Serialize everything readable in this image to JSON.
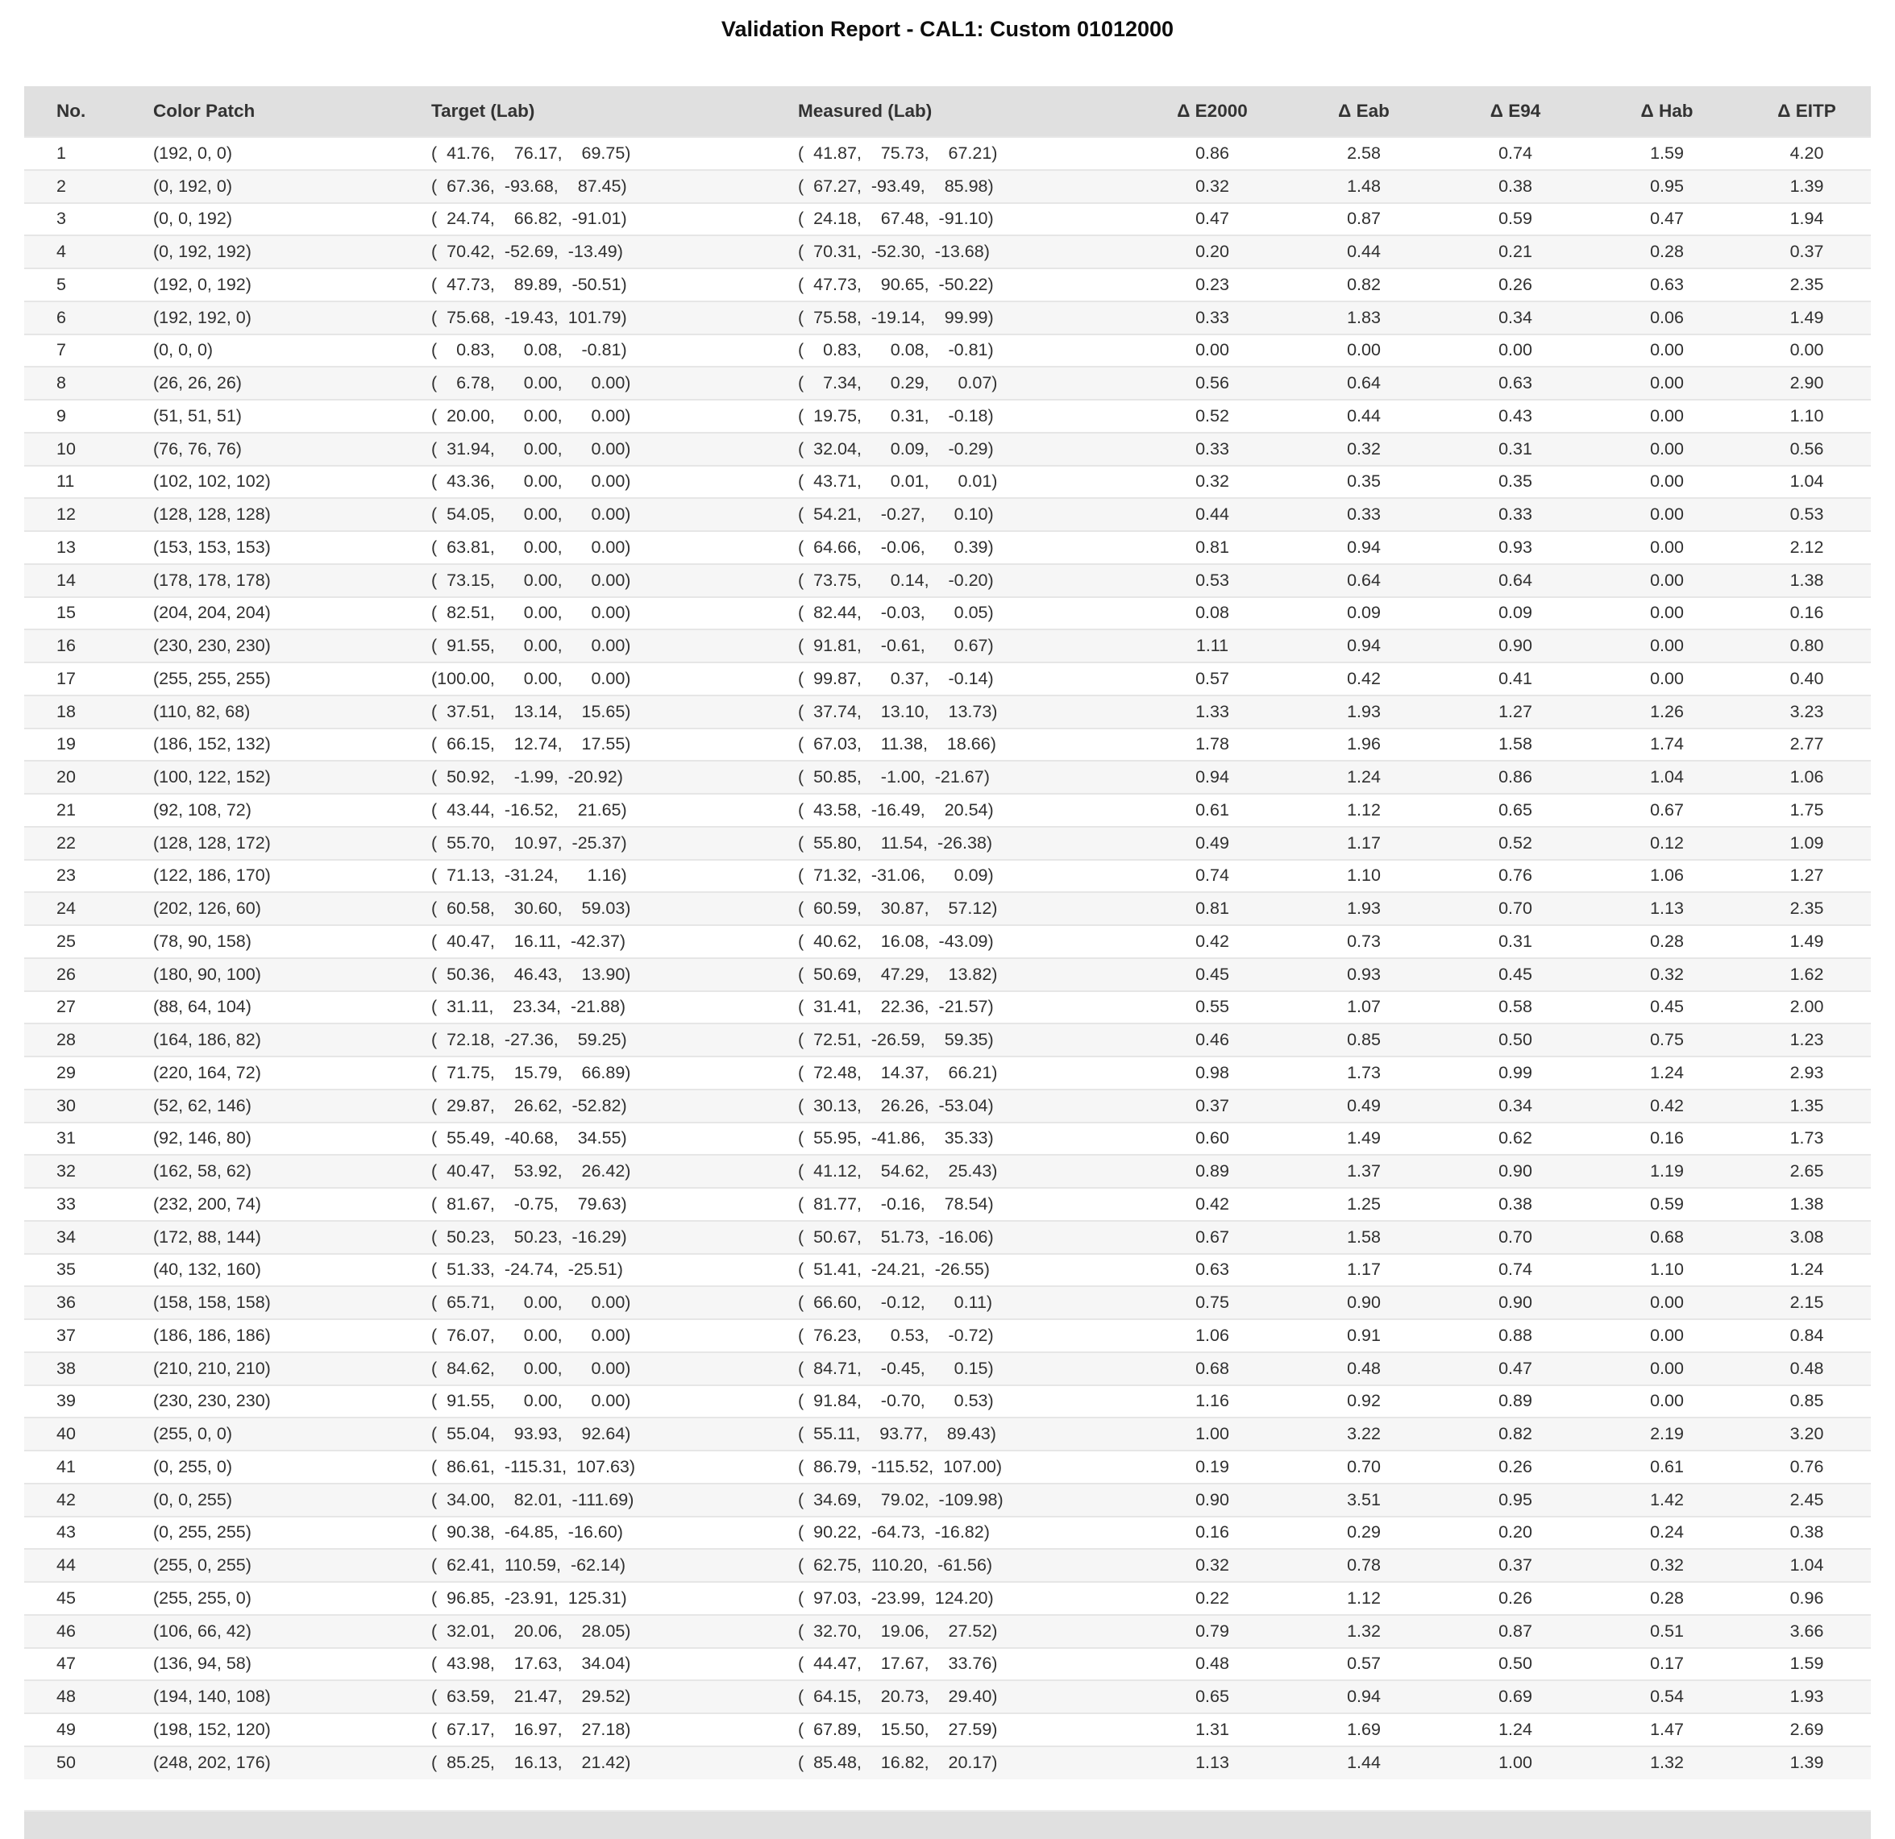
{
  "report": {
    "title": "Validation Report - CAL1: Custom 01012000"
  },
  "colors": {
    "header_bg": "#e0e0e0",
    "footer_bg": "#e0e0e0",
    "row_stripe": "#f6f6f6",
    "row_border": "#e6e6e6",
    "text": "#303030"
  },
  "table": {
    "columns": [
      "No.",
      "Color Patch",
      "Target (Lab)",
      "Measured (Lab)",
      "Δ E2000",
      "Δ Eab",
      "Δ E94",
      "Δ Hab",
      "Δ EITP"
    ],
    "rows": [
      [
        "1",
        "(192, 0, 0)",
        "( 41.76,  76.17,  69.75)",
        "( 41.87,  75.73,  67.21)",
        "0.86",
        "2.58",
        "0.74",
        "1.59",
        "4.20"
      ],
      [
        "2",
        "(0, 192, 0)",
        "( 67.36, -93.68,  87.45)",
        "( 67.27, -93.49,  85.98)",
        "0.32",
        "1.48",
        "0.38",
        "0.95",
        "1.39"
      ],
      [
        "3",
        "(0, 0, 192)",
        "( 24.74,  66.82, -91.01)",
        "( 24.18,  67.48, -91.10)",
        "0.47",
        "0.87",
        "0.59",
        "0.47",
        "1.94"
      ],
      [
        "4",
        "(0, 192, 192)",
        "( 70.42, -52.69, -13.49)",
        "( 70.31, -52.30, -13.68)",
        "0.20",
        "0.44",
        "0.21",
        "0.28",
        "0.37"
      ],
      [
        "5",
        "(192, 0, 192)",
        "( 47.73,  89.89, -50.51)",
        "( 47.73,  90.65, -50.22)",
        "0.23",
        "0.82",
        "0.26",
        "0.63",
        "2.35"
      ],
      [
        "6",
        "(192, 192, 0)",
        "( 75.68, -19.43, 101.79)",
        "( 75.58, -19.14,  99.99)",
        "0.33",
        "1.83",
        "0.34",
        "0.06",
        "1.49"
      ],
      [
        "7",
        "(0, 0, 0)",
        "(  0.83,   0.08,  -0.81)",
        "(  0.83,   0.08,  -0.81)",
        "0.00",
        "0.00",
        "0.00",
        "0.00",
        "0.00"
      ],
      [
        "8",
        "(26, 26, 26)",
        "(  6.78,   0.00,   0.00)",
        "(  7.34,   0.29,   0.07)",
        "0.56",
        "0.64",
        "0.63",
        "0.00",
        "2.90"
      ],
      [
        "9",
        "(51, 51, 51)",
        "( 20.00,   0.00,   0.00)",
        "( 19.75,   0.31,  -0.18)",
        "0.52",
        "0.44",
        "0.43",
        "0.00",
        "1.10"
      ],
      [
        "10",
        "(76, 76, 76)",
        "( 31.94,   0.00,   0.00)",
        "( 32.04,   0.09,  -0.29)",
        "0.33",
        "0.32",
        "0.31",
        "0.00",
        "0.56"
      ],
      [
        "11",
        "(102, 102, 102)",
        "( 43.36,   0.00,   0.00)",
        "( 43.71,   0.01,   0.01)",
        "0.32",
        "0.35",
        "0.35",
        "0.00",
        "1.04"
      ],
      [
        "12",
        "(128, 128, 128)",
        "( 54.05,   0.00,   0.00)",
        "( 54.21,  -0.27,   0.10)",
        "0.44",
        "0.33",
        "0.33",
        "0.00",
        "0.53"
      ],
      [
        "13",
        "(153, 153, 153)",
        "( 63.81,   0.00,   0.00)",
        "( 64.66,  -0.06,   0.39)",
        "0.81",
        "0.94",
        "0.93",
        "0.00",
        "2.12"
      ],
      [
        "14",
        "(178, 178, 178)",
        "( 73.15,   0.00,   0.00)",
        "( 73.75,   0.14,  -0.20)",
        "0.53",
        "0.64",
        "0.64",
        "0.00",
        "1.38"
      ],
      [
        "15",
        "(204, 204, 204)",
        "( 82.51,   0.00,   0.00)",
        "( 82.44,  -0.03,   0.05)",
        "0.08",
        "0.09",
        "0.09",
        "0.00",
        "0.16"
      ],
      [
        "16",
        "(230, 230, 230)",
        "( 91.55,   0.00,   0.00)",
        "( 91.81,  -0.61,   0.67)",
        "1.11",
        "0.94",
        "0.90",
        "0.00",
        "0.80"
      ],
      [
        "17",
        "(255, 255, 255)",
        "(100.00,   0.00,   0.00)",
        "( 99.87,   0.37,  -0.14)",
        "0.57",
        "0.42",
        "0.41",
        "0.00",
        "0.40"
      ],
      [
        "18",
        "(110, 82, 68)",
        "( 37.51,  13.14,  15.65)",
        "( 37.74,  13.10,  13.73)",
        "1.33",
        "1.93",
        "1.27",
        "1.26",
        "3.23"
      ],
      [
        "19",
        "(186, 152, 132)",
        "( 66.15,  12.74,  17.55)",
        "( 67.03,  11.38,  18.66)",
        "1.78",
        "1.96",
        "1.58",
        "1.74",
        "2.77"
      ],
      [
        "20",
        "(100, 122, 152)",
        "( 50.92,  -1.99, -20.92)",
        "( 50.85,  -1.00, -21.67)",
        "0.94",
        "1.24",
        "0.86",
        "1.04",
        "1.06"
      ],
      [
        "21",
        "(92, 108, 72)",
        "( 43.44, -16.52,  21.65)",
        "( 43.58, -16.49,  20.54)",
        "0.61",
        "1.12",
        "0.65",
        "0.67",
        "1.75"
      ],
      [
        "22",
        "(128, 128, 172)",
        "( 55.70,  10.97, -25.37)",
        "( 55.80,  11.54, -26.38)",
        "0.49",
        "1.17",
        "0.52",
        "0.12",
        "1.09"
      ],
      [
        "23",
        "(122, 186, 170)",
        "( 71.13, -31.24,   1.16)",
        "( 71.32, -31.06,   0.09)",
        "0.74",
        "1.10",
        "0.76",
        "1.06",
        "1.27"
      ],
      [
        "24",
        "(202, 126, 60)",
        "( 60.58,  30.60,  59.03)",
        "( 60.59,  30.87,  57.12)",
        "0.81",
        "1.93",
        "0.70",
        "1.13",
        "2.35"
      ],
      [
        "25",
        "(78, 90, 158)",
        "( 40.47,  16.11, -42.37)",
        "( 40.62,  16.08, -43.09)",
        "0.42",
        "0.73",
        "0.31",
        "0.28",
        "1.49"
      ],
      [
        "26",
        "(180, 90, 100)",
        "( 50.36,  46.43,  13.90)",
        "( 50.69,  47.29,  13.82)",
        "0.45",
        "0.93",
        "0.45",
        "0.32",
        "1.62"
      ],
      [
        "27",
        "(88, 64, 104)",
        "( 31.11,  23.34, -21.88)",
        "( 31.41,  22.36, -21.57)",
        "0.55",
        "1.07",
        "0.58",
        "0.45",
        "2.00"
      ],
      [
        "28",
        "(164, 186, 82)",
        "( 72.18, -27.36,  59.25)",
        "( 72.51, -26.59,  59.35)",
        "0.46",
        "0.85",
        "0.50",
        "0.75",
        "1.23"
      ],
      [
        "29",
        "(220, 164, 72)",
        "( 71.75,  15.79,  66.89)",
        "( 72.48,  14.37,  66.21)",
        "0.98",
        "1.73",
        "0.99",
        "1.24",
        "2.93"
      ],
      [
        "30",
        "(52, 62, 146)",
        "( 29.87,  26.62, -52.82)",
        "( 30.13,  26.26, -53.04)",
        "0.37",
        "0.49",
        "0.34",
        "0.42",
        "1.35"
      ],
      [
        "31",
        "(92, 146, 80)",
        "( 55.49, -40.68,  34.55)",
        "( 55.95, -41.86,  35.33)",
        "0.60",
        "1.49",
        "0.62",
        "0.16",
        "1.73"
      ],
      [
        "32",
        "(162, 58, 62)",
        "( 40.47,  53.92,  26.42)",
        "( 41.12,  54.62,  25.43)",
        "0.89",
        "1.37",
        "0.90",
        "1.19",
        "2.65"
      ],
      [
        "33",
        "(232, 200, 74)",
        "( 81.67,  -0.75,  79.63)",
        "( 81.77,  -0.16,  78.54)",
        "0.42",
        "1.25",
        "0.38",
        "0.59",
        "1.38"
      ],
      [
        "34",
        "(172, 88, 144)",
        "( 50.23,  50.23, -16.29)",
        "( 50.67,  51.73, -16.06)",
        "0.67",
        "1.58",
        "0.70",
        "0.68",
        "3.08"
      ],
      [
        "35",
        "(40, 132, 160)",
        "( 51.33, -24.74, -25.51)",
        "( 51.41, -24.21, -26.55)",
        "0.63",
        "1.17",
        "0.74",
        "1.10",
        "1.24"
      ],
      [
        "36",
        "(158, 158, 158)",
        "( 65.71,   0.00,   0.00)",
        "( 66.60,  -0.12,   0.11)",
        "0.75",
        "0.90",
        "0.90",
        "0.00",
        "2.15"
      ],
      [
        "37",
        "(186, 186, 186)",
        "( 76.07,   0.00,   0.00)",
        "( 76.23,   0.53,  -0.72)",
        "1.06",
        "0.91",
        "0.88",
        "0.00",
        "0.84"
      ],
      [
        "38",
        "(210, 210, 210)",
        "( 84.62,   0.00,   0.00)",
        "( 84.71,  -0.45,   0.15)",
        "0.68",
        "0.48",
        "0.47",
        "0.00",
        "0.48"
      ],
      [
        "39",
        "(230, 230, 230)",
        "( 91.55,   0.00,   0.00)",
        "( 91.84,  -0.70,   0.53)",
        "1.16",
        "0.92",
        "0.89",
        "0.00",
        "0.85"
      ],
      [
        "40",
        "(255, 0, 0)",
        "( 55.04,  93.93,  92.64)",
        "( 55.11,  93.77,  89.43)",
        "1.00",
        "3.22",
        "0.82",
        "2.19",
        "3.20"
      ],
      [
        "41",
        "(0, 255, 0)",
        "( 86.61, -115.31, 107.63)",
        "( 86.79, -115.52, 107.00)",
        "0.19",
        "0.70",
        "0.26",
        "0.61",
        "0.76"
      ],
      [
        "42",
        "(0, 0, 255)",
        "( 34.00,  82.01, -111.69)",
        "( 34.69,  79.02, -109.98)",
        "0.90",
        "3.51",
        "0.95",
        "1.42",
        "2.45"
      ],
      [
        "43",
        "(0, 255, 255)",
        "( 90.38, -64.85, -16.60)",
        "( 90.22, -64.73, -16.82)",
        "0.16",
        "0.29",
        "0.20",
        "0.24",
        "0.38"
      ],
      [
        "44",
        "(255, 0, 255)",
        "( 62.41, 110.59, -62.14)",
        "( 62.75, 110.20, -61.56)",
        "0.32",
        "0.78",
        "0.37",
        "0.32",
        "1.04"
      ],
      [
        "45",
        "(255, 255, 0)",
        "( 96.85, -23.91, 125.31)",
        "( 97.03, -23.99, 124.20)",
        "0.22",
        "1.12",
        "0.26",
        "0.28",
        "0.96"
      ],
      [
        "46",
        "(106, 66, 42)",
        "( 32.01,  20.06,  28.05)",
        "( 32.70,  19.06,  27.52)",
        "0.79",
        "1.32",
        "0.87",
        "0.51",
        "3.66"
      ],
      [
        "47",
        "(136, 94, 58)",
        "( 43.98,  17.63,  34.04)",
        "( 44.47,  17.67,  33.76)",
        "0.48",
        "0.57",
        "0.50",
        "0.17",
        "1.59"
      ],
      [
        "48",
        "(194, 140, 108)",
        "( 63.59,  21.47,  29.52)",
        "( 64.15,  20.73,  29.40)",
        "0.65",
        "0.94",
        "0.69",
        "0.54",
        "1.93"
      ],
      [
        "49",
        "(198, 152, 120)",
        "( 67.17,  16.97,  27.18)",
        "( 67.89,  15.50,  27.59)",
        "1.31",
        "1.69",
        "1.24",
        "1.47",
        "2.69"
      ],
      [
        "50",
        "(248, 202, 176)",
        "( 85.25,  16.13,  21.42)",
        "( 85.48,  16.82,  20.17)",
        "1.13",
        "1.44",
        "1.00",
        "1.32",
        "1.39"
      ]
    ]
  }
}
